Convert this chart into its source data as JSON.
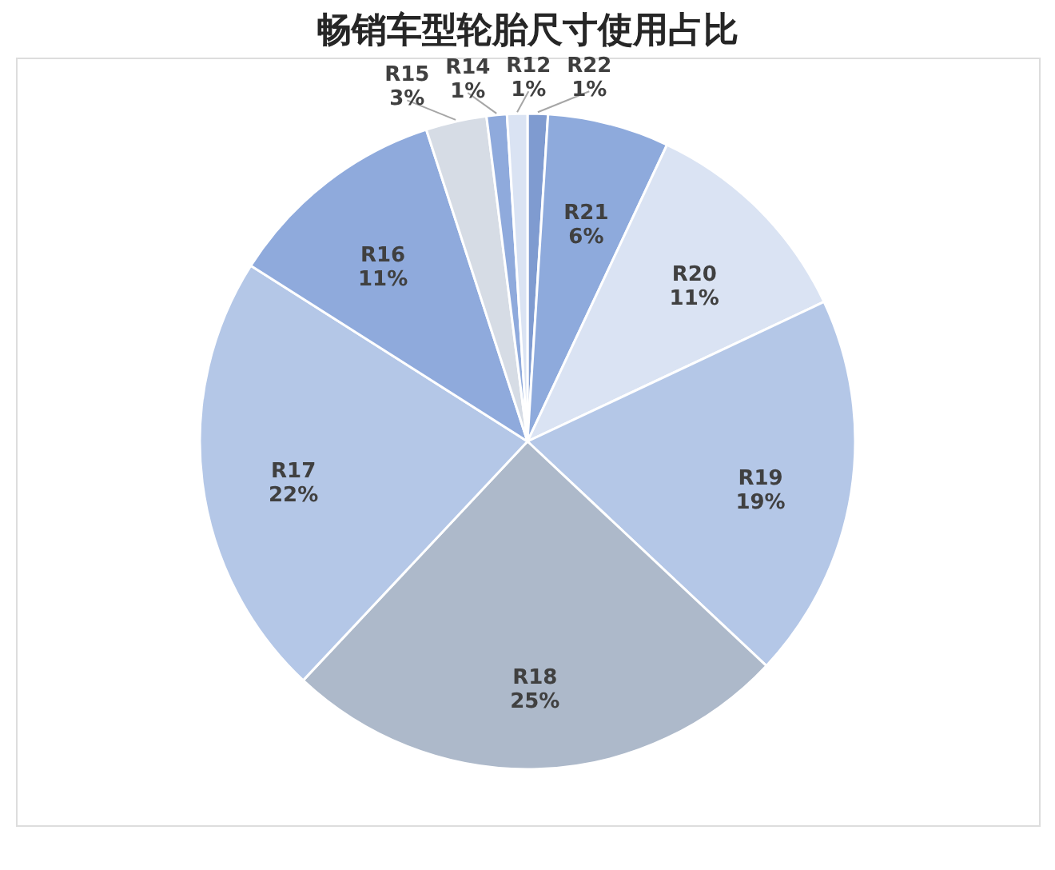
{
  "chart_data": {
    "type": "pie",
    "title": "畅销车型轮胎尺寸使用占比",
    "categories": [
      "R22",
      "R21",
      "R20",
      "R19",
      "R18",
      "R17",
      "R16",
      "R15",
      "R14",
      "R12"
    ],
    "values": [
      1,
      6,
      11,
      19,
      25,
      22,
      11,
      3,
      1,
      1
    ],
    "value_labels": [
      "1%",
      "6%",
      "11%",
      "19%",
      "25%",
      "22%",
      "11%",
      "3%",
      "1%",
      "1%"
    ],
    "colors": [
      "#7f9bd0",
      "#8eaadc",
      "#dae3f3",
      "#b4c7e7",
      "#adb9ca",
      "#b4c7e7",
      "#8faadc",
      "#d6dce5",
      "#8faadc",
      "#dae3f3"
    ],
    "legend": false
  }
}
